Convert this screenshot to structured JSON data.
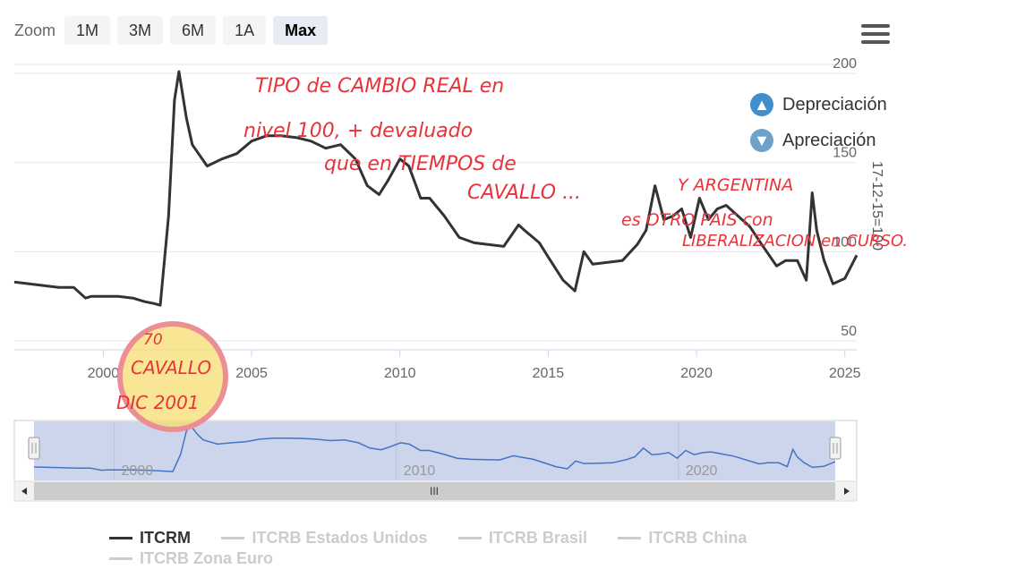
{
  "toolbar": {
    "zoom_label": "Zoom",
    "buttons": [
      "1M",
      "3M",
      "6M",
      "1A",
      "Max"
    ],
    "active": "Max",
    "menu_icon": "hamburger-menu-icon"
  },
  "right_legend": {
    "items": [
      {
        "label": "Depreciación",
        "icon": "arrow-up-circle-icon",
        "color": "#3f8fcf"
      },
      {
        "label": "Apreciación",
        "icon": "arrow-down-circle-icon",
        "color": "#6fa2c8"
      }
    ]
  },
  "marker_label": "17-12-15=100",
  "navigator": {
    "tick_labels": [
      "2000",
      "2010",
      "2020"
    ],
    "scroll_handle": "III"
  },
  "legend": {
    "items": [
      {
        "label": "ITCRM",
        "active": true
      },
      {
        "label": "ITCRB Estados Unidos",
        "active": false
      },
      {
        "label": "ITCRB Brasil",
        "active": false
      },
      {
        "label": "ITCRB China",
        "active": false
      },
      {
        "label": "ITCRB Zona Euro",
        "active": false
      }
    ]
  },
  "annotations": {
    "lines": [
      "TIPO de CAMBIO REAL en",
      "nivel 100, + devaluado",
      "que en TIEMPOS de",
      "CAVALLO ...",
      "Y ARGENTINA",
      "es OTRO PAIS con",
      "LIBERALIZACION en CURSO."
    ],
    "circle_lines": [
      "70",
      "CAVALLO",
      "DIC 2001"
    ],
    "color": "#e8333a"
  },
  "chart_data": {
    "type": "line",
    "title": "",
    "xlabel": "",
    "ylabel": "17-12-15=100",
    "xlim": [
      1997,
      2025.4
    ],
    "ylim": [
      45,
      205
    ],
    "yticks": [
      50,
      100,
      150,
      200
    ],
    "xticks": [
      2000,
      2005,
      2010,
      2015,
      2020,
      2025
    ],
    "series": [
      {
        "name": "ITCRM",
        "color": "#333333",
        "x": [
          1997.0,
          1997.5,
          1998.0,
          1998.5,
          1999.0,
          1999.4,
          1999.6,
          2000.0,
          2000.5,
          2001.0,
          2001.4,
          2001.7,
          2001.92,
          2002.2,
          2002.4,
          2002.55,
          2002.8,
          2003.0,
          2003.5,
          2004.0,
          2004.5,
          2005.0,
          2005.5,
          2006.0,
          2006.5,
          2007.0,
          2007.5,
          2008.0,
          2008.5,
          2008.9,
          2009.3,
          2009.6,
          2010.0,
          2010.3,
          2010.7,
          2011.0,
          2011.5,
          2012.0,
          2012.5,
          2013.0,
          2013.5,
          2014.0,
          2014.2,
          2014.7,
          2015.0,
          2015.5,
          2015.9,
          2016.2,
          2016.5,
          2017.0,
          2017.5,
          2018.0,
          2018.3,
          2018.6,
          2018.9,
          2019.2,
          2019.5,
          2019.8,
          2020.1,
          2020.4,
          2020.7,
          2021.0,
          2021.4,
          2021.8,
          2022.2,
          2022.7,
          2023.0,
          2023.4,
          2023.7,
          2023.9,
          2024.05,
          2024.3,
          2024.6,
          2025.0,
          2025.4
        ],
        "values": [
          83,
          82,
          81,
          80,
          80,
          74,
          75,
          75,
          75,
          74,
          72,
          71,
          70,
          120,
          185,
          201,
          175,
          160,
          148,
          152,
          155,
          162,
          165,
          165,
          164,
          162,
          158,
          160,
          152,
          137,
          132,
          140,
          152,
          148,
          130,
          130,
          120,
          108,
          105,
          104,
          103,
          115,
          112,
          105,
          97,
          84,
          78,
          100,
          93,
          94,
          95,
          104,
          112,
          137,
          118,
          120,
          124,
          108,
          130,
          118,
          124,
          126,
          120,
          114,
          104,
          92,
          95,
          95,
          84,
          133,
          112,
          95,
          82,
          85,
          98
        ]
      }
    ],
    "navigator_range": [
      1997,
      2025.4
    ]
  }
}
